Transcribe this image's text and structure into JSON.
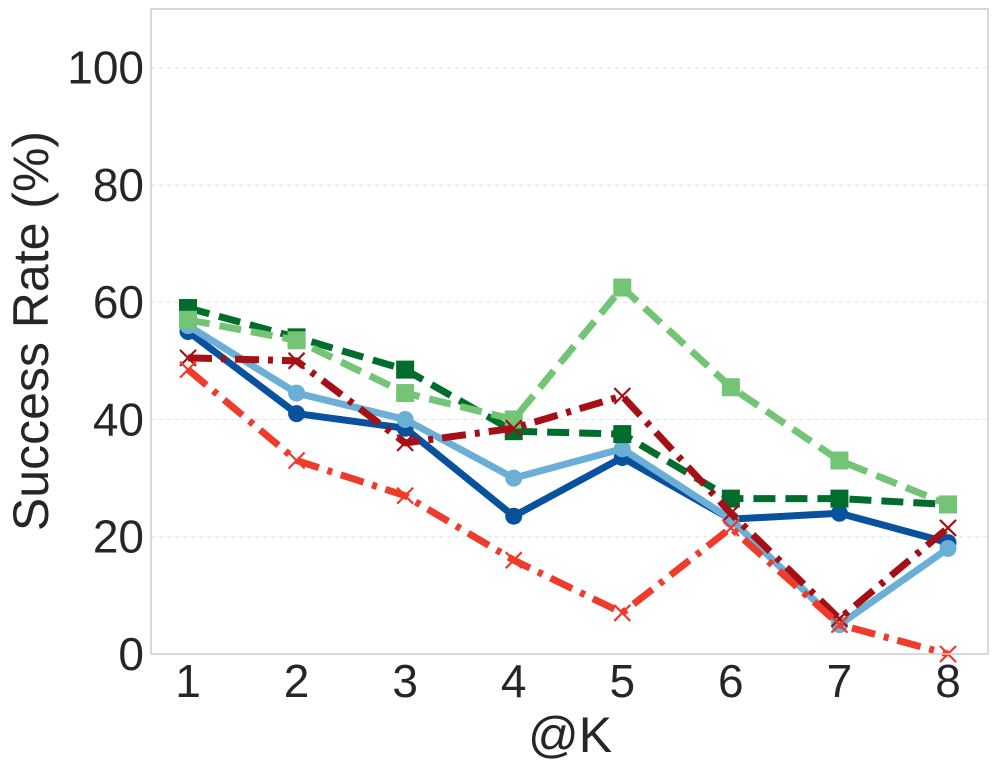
{
  "chart_data": {
    "type": "line",
    "title": "",
    "xlabel": "@K",
    "ylabel": "Success Rate (%)",
    "x": [
      1,
      2,
      3,
      4,
      5,
      6,
      7,
      8
    ],
    "xticks": [
      "1",
      "2",
      "3",
      "4",
      "5",
      "6",
      "7",
      "8"
    ],
    "yticks": [
      "0",
      "20",
      "40",
      "60",
      "80",
      "100"
    ],
    "ylim": [
      0,
      110
    ],
    "grid": true,
    "legend": "none",
    "series": [
      {
        "color": "#08519c",
        "style": "solid",
        "marker": "circle",
        "values": [
          55,
          41,
          38.5,
          23.5,
          33.5,
          23,
          24,
          19
        ]
      },
      {
        "color": "#6baed6",
        "style": "solid",
        "marker": "circle",
        "values": [
          56,
          44.5,
          40,
          30,
          35,
          23,
          5,
          18
        ]
      },
      {
        "color": "#006d2c",
        "style": "dashed",
        "marker": "square",
        "values": [
          59,
          54,
          48.5,
          38,
          37.5,
          26.5,
          26.5,
          25.5
        ]
      },
      {
        "color": "#74c476",
        "style": "dashed",
        "marker": "square",
        "values": [
          57,
          53.5,
          44.5,
          40,
          62.5,
          45.5,
          33,
          25.5
        ]
      },
      {
        "color": "#a50f15",
        "style": "dashdot",
        "marker": "x",
        "values": [
          50.5,
          50,
          36,
          38.5,
          44,
          24,
          6,
          21.5
        ]
      },
      {
        "color": "#ef3b2c",
        "style": "dashdot",
        "marker": "x",
        "values": [
          48.5,
          33,
          27,
          16,
          7,
          21.5,
          5,
          0
        ]
      }
    ]
  }
}
